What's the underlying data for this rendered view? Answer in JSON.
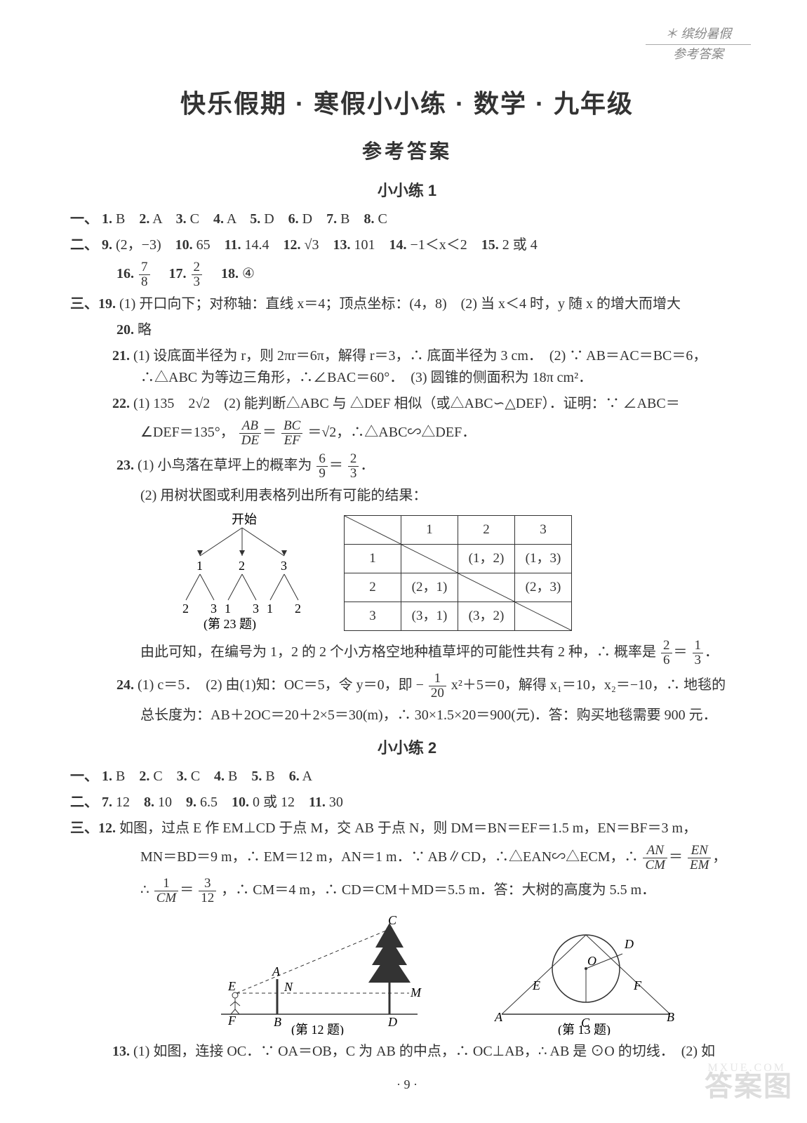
{
  "header_top": "＊ 缤纷暑假",
  "header_bottom": "参考答案",
  "title": "快乐假期 · 寒假小小练 · 数学 · 九年级",
  "subtitle": "参考答案",
  "sxj1": {
    "heading": "小小练 1",
    "s1_pre": "一、",
    "s1": [
      {
        "n": "1.",
        "v": "B"
      },
      {
        "n": "2.",
        "v": "A"
      },
      {
        "n": "3.",
        "v": "C"
      },
      {
        "n": "4.",
        "v": "A"
      },
      {
        "n": "5.",
        "v": "D"
      },
      {
        "n": "6.",
        "v": "D"
      },
      {
        "n": "7.",
        "v": "B"
      },
      {
        "n": "8.",
        "v": "C"
      }
    ],
    "s2_pre": "二、",
    "s2_line1": [
      {
        "n": "9.",
        "v": "(2，−3)"
      },
      {
        "n": "10.",
        "v": "65"
      },
      {
        "n": "11.",
        "v": "14.4"
      },
      {
        "n": "12.",
        "v": "√3"
      },
      {
        "n": "13.",
        "v": "101"
      },
      {
        "n": "14.",
        "v": "−1＜x＜2"
      },
      {
        "n": "15.",
        "v": "2 或 4"
      }
    ],
    "q16": {
      "n": "16.",
      "fn": "7",
      "fd": "8"
    },
    "q17": {
      "n": "17.",
      "fn": "2",
      "fd": "3"
    },
    "q18": {
      "n": "18.",
      "v": "④"
    },
    "s3_pre": "三、",
    "q19": "(1) 开口向下；对称轴：直线 x＝4；顶点坐标：(4，8)　(2) 当 x＜4 时，y 随 x 的增大而增大",
    "q20n": "20.",
    "q20": "略",
    "q21n": "21.",
    "q21": "(1) 设底面半径为 r，则 2πr＝6π，解得 r＝3，∴ 底面半径为 3 cm．　(2) ∵ AB＝AC＝BC＝6，∴△ABC 为等边三角形，∴∠BAC＝60°．　(3) 圆锥的侧面积为 18π cm²．",
    "q22n": "22.",
    "q22_a": "(1) 135　2√2　(2) 能判断△ABC 与 △DEF 相似（或△ABC∽△DEF）．证明：∵ ∠ABC＝",
    "q22_b": "∠DEF＝135°，",
    "q22_c": "＝√2，∴△ABC∽△DEF．",
    "r_AB": "AB",
    "r_DE": "DE",
    "r_BC": "BC",
    "r_EF": "EF",
    "q23n": "23.",
    "q23_a": "(1) 小鸟落在草坪上的概率为",
    "q23_af1n": "6",
    "q23_af1d": "9",
    "q23_af2n": "2",
    "q23_af2d": "3",
    "q23_b": "(2) 用树状图或利用表格列出所有可能的结果：",
    "tree_start": "开始",
    "tree_caption": "(第 23 题)",
    "table": {
      "head": [
        "",
        "1",
        "2",
        "3"
      ],
      "rows": [
        [
          "1",
          "",
          "(1，2)",
          "(1，3)"
        ],
        [
          "2",
          "(2，1)",
          "",
          "(2，3)"
        ],
        [
          "3",
          "(3，1)",
          "(3，2)",
          ""
        ]
      ]
    },
    "q23_c": "由此可知，在编号为 1，2 的 2 个小方格空地种植草坪的可能性共有 2 种，∴ 概率是",
    "q23_cf1n": "2",
    "q23_cf1d": "6",
    "q23_cf2n": "1",
    "q23_cf2d": "3",
    "q24n": "24.",
    "q24_a": "(1) c＝5．　(2) 由(1)知：OC＝5，令 y＝0，即 −",
    "q24_f1n": "1",
    "q24_f1d": "20",
    "q24_b": "x²＋5＝0，解得 x₁＝10，x₂＝−10，∴ 地毯的",
    "q24_c": "总长度为：AB＋2OC＝20＋2×5＝30(m)，∴ 30×1.5×20＝900(元)．答：购买地毯需要 900 元．"
  },
  "sxj2": {
    "heading": "小小练 2",
    "s1_pre": "一、",
    "s1": [
      {
        "n": "1.",
        "v": "B"
      },
      {
        "n": "2.",
        "v": "C"
      },
      {
        "n": "3.",
        "v": "C"
      },
      {
        "n": "4.",
        "v": "B"
      },
      {
        "n": "5.",
        "v": "B"
      },
      {
        "n": "6.",
        "v": "A"
      }
    ],
    "s2_pre": "二、",
    "s2": [
      {
        "n": "7.",
        "v": "12"
      },
      {
        "n": "8.",
        "v": "10"
      },
      {
        "n": "9.",
        "v": "6.5"
      },
      {
        "n": "10.",
        "v": "0 或 12"
      },
      {
        "n": "11.",
        "v": "30"
      }
    ],
    "s3_pre": "三、",
    "q12n": "12.",
    "q12_a": "如图，过点 E 作 EM⊥CD 于点 M，交 AB 于点 N，则 DM＝BN＝EF＝1.5 m，EN＝BF＝3 m，",
    "q12_b": "MN＝BD＝9 m，∴ EM＝12 m，AN＝1 m．∵ AB∥CD，∴△EAN∽△ECM，∴",
    "r_AN": "AN",
    "r_CM": "CM",
    "r_EN": "EN",
    "r_EM": "EM",
    "q12_c": "∴",
    "q12_f1n": "1",
    "q12_f1d": "CM",
    "q12_f2n": "3",
    "q12_f2d": "12",
    "q12_d": "，∴ CM＝4 m，∴ CD＝CM＋MD＝5.5 m．答：大树的高度为 5.5 m．",
    "fig12_caption": "(第 12 题)",
    "fig13_caption": "(第 13 题)",
    "q13n": "13.",
    "q13": "(1) 如图，连接 OC．∵ OA＝OB，C 为 AB 的中点，∴ OC⊥AB，∴ AB 是 ⊙O 的切线．　(2) 如"
  },
  "pagenum": "· 9 ·",
  "watermark_big": "答案图",
  "watermark_small": "MXUE.COM"
}
